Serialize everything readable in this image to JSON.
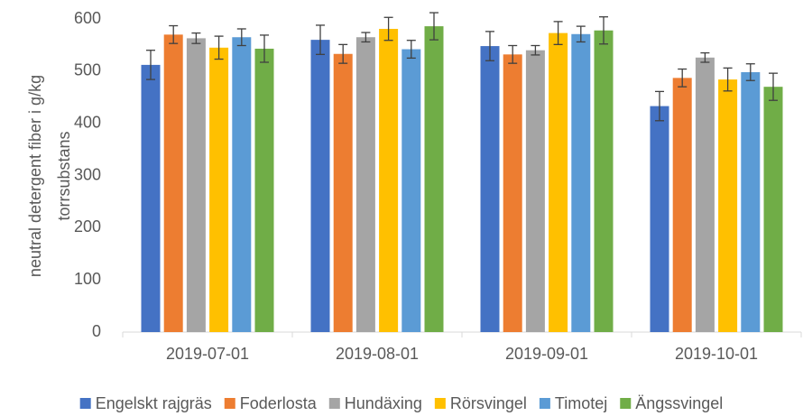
{
  "chart_data": {
    "type": "bar",
    "ylabel": [
      "neutral detergent fiber i g/kg",
      "torrsubstans"
    ],
    "categories": [
      "2019-07-01",
      "2019-08-01",
      "2019-09-01",
      "2019-10-01"
    ],
    "series": [
      {
        "name": "Engelskt rajgräs",
        "color": "#4472c4",
        "values": [
          512,
          560,
          548,
          433
        ],
        "errors": [
          28,
          28,
          28,
          28
        ]
      },
      {
        "name": "Foderlosta",
        "color": "#ed7d31",
        "values": [
          570,
          533,
          532,
          487
        ],
        "errors": [
          17,
          18,
          17,
          17
        ]
      },
      {
        "name": "Hundäxing",
        "color": "#a5a5a5",
        "values": [
          563,
          565,
          540,
          526
        ],
        "errors": [
          10,
          9,
          9,
          9
        ]
      },
      {
        "name": "Rörsvingel",
        "color": "#ffc000",
        "values": [
          545,
          581,
          573,
          484
        ],
        "errors": [
          22,
          22,
          22,
          22
        ]
      },
      {
        "name": "Timotej",
        "color": "#5b9bd5",
        "values": [
          565,
          542,
          571,
          498
        ],
        "errors": [
          16,
          17,
          15,
          16
        ]
      },
      {
        "name": "Ängssvingel",
        "color": "#70ad47",
        "values": [
          543,
          586,
          578,
          470
        ],
        "errors": [
          26,
          26,
          26,
          26
        ]
      }
    ],
    "ylim": [
      0,
      600
    ],
    "yticks": [
      0,
      100,
      200,
      300,
      400,
      500,
      600
    ],
    "grid": false,
    "legend": "bottom"
  }
}
